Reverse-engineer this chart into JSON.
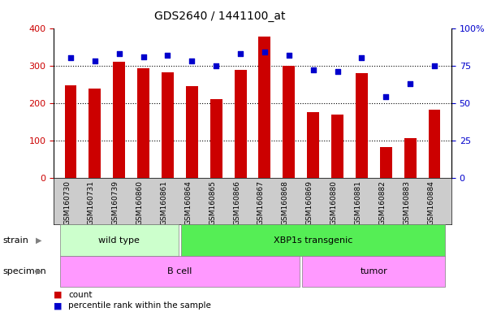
{
  "title": "GDS2640 / 1441100_at",
  "samples": [
    "GSM160730",
    "GSM160731",
    "GSM160739",
    "GSM160860",
    "GSM160861",
    "GSM160864",
    "GSM160865",
    "GSM160866",
    "GSM160867",
    "GSM160868",
    "GSM160869",
    "GSM160880",
    "GSM160881",
    "GSM160882",
    "GSM160883",
    "GSM160884"
  ],
  "counts": [
    248,
    238,
    310,
    293,
    282,
    244,
    210,
    288,
    378,
    300,
    176,
    169,
    280,
    83,
    105,
    182
  ],
  "percentiles": [
    80,
    78,
    83,
    81,
    82,
    78,
    75,
    83,
    84,
    82,
    72,
    71,
    80,
    54,
    63,
    75
  ],
  "bar_color": "#cc0000",
  "dot_color": "#0000cc",
  "left_ylim": [
    0,
    400
  ],
  "right_ylim": [
    0,
    100
  ],
  "left_yticks": [
    0,
    100,
    200,
    300,
    400
  ],
  "right_yticks": [
    0,
    25,
    50,
    75,
    100
  ],
  "right_yticklabels": [
    "0",
    "25",
    "50",
    "75",
    "100%"
  ],
  "dotted_lines": [
    100,
    200,
    300
  ],
  "strain_labels": [
    "wild type",
    "XBP1s transgenic"
  ],
  "strain_split": 5,
  "specimen_split": 10,
  "specimen_labels": [
    "B cell",
    "tumor"
  ],
  "strain_color_left": "#ccffcc",
  "strain_color_right": "#55ee55",
  "specimen_color": "#ff99ff",
  "legend_count_color": "#cc0000",
  "legend_dot_color": "#0000cc",
  "legend_count_label": "count",
  "legend_dot_label": "percentile rank within the sample",
  "bg_color": "#ffffff",
  "tick_area_color": "#cccccc",
  "bar_width": 0.5
}
